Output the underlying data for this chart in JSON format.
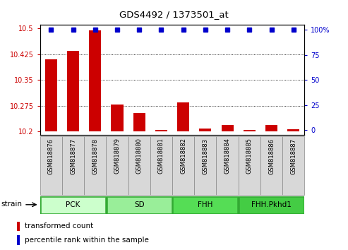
{
  "title": "GDS4492 / 1373501_at",
  "samples": [
    "GSM818876",
    "GSM818877",
    "GSM818878",
    "GSM818879",
    "GSM818880",
    "GSM818881",
    "GSM818882",
    "GSM818883",
    "GSM818884",
    "GSM818885",
    "GSM818886",
    "GSM818887"
  ],
  "red_values": [
    10.41,
    10.435,
    10.495,
    10.278,
    10.253,
    10.205,
    10.285,
    10.208,
    10.22,
    10.205,
    10.22,
    10.207
  ],
  "blue_values": [
    100,
    100,
    100,
    100,
    100,
    100,
    100,
    100,
    100,
    100,
    100,
    100
  ],
  "ylim_left": [
    10.19,
    10.51
  ],
  "ylim_right": [
    -5,
    105
  ],
  "yticks_left": [
    10.2,
    10.275,
    10.35,
    10.425,
    10.5
  ],
  "yticks_left_labels": [
    "10.2",
    "10.275",
    "10.35",
    "10.425",
    "10.5"
  ],
  "yticks_right": [
    0,
    25,
    50,
    75,
    100
  ],
  "yticks_right_labels": [
    "0",
    "25",
    "50",
    "75",
    "100%"
  ],
  "strain_groups": [
    {
      "label": "PCK",
      "start": 0,
      "end": 3,
      "color": "#ccffcc"
    },
    {
      "label": "SD",
      "start": 3,
      "end": 6,
      "color": "#99ee99"
    },
    {
      "label": "FHH",
      "start": 6,
      "end": 9,
      "color": "#55dd55"
    },
    {
      "label": "FHH.Pkhd1",
      "start": 9,
      "end": 12,
      "color": "#44cc44"
    }
  ],
  "strain_label": "strain",
  "red_color": "#cc0000",
  "blue_color": "#0000cc",
  "baseline": 10.2,
  "legend_red": "transformed count",
  "legend_blue": "percentile rank within the sample",
  "grid_lines": [
    10.275,
    10.35,
    10.425
  ],
  "bg_color": "#ffffff",
  "sample_box_color": "#d8d8d8",
  "strain_border_color": "#33aa33"
}
